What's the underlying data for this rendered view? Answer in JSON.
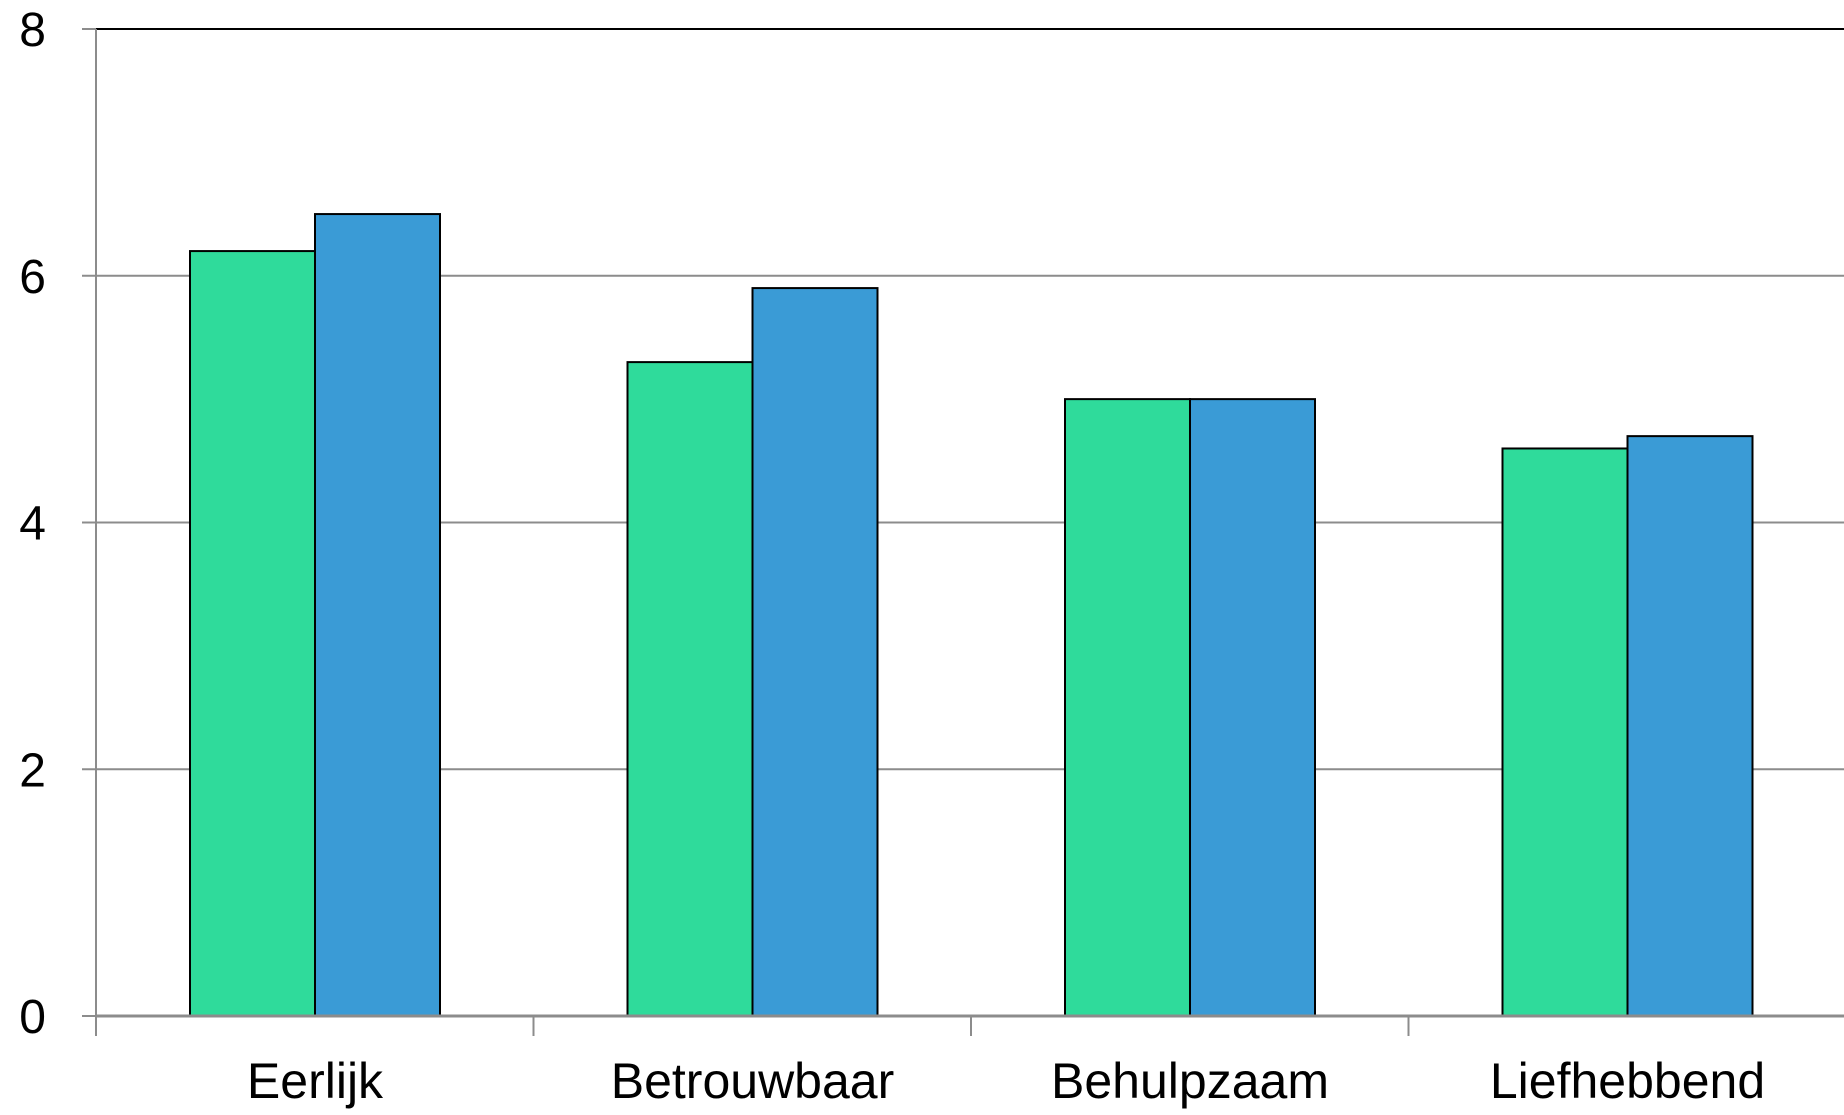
{
  "chart_data": {
    "type": "bar",
    "categories": [
      "Eerlijk",
      "Betrouwbaar",
      "Behulpzaam",
      "Liefhebbend"
    ],
    "series": [
      {
        "color": "#2fdb9b",
        "values": [
          6.2,
          5.3,
          5.0,
          4.6
        ]
      },
      {
        "color": "#3a9bd6",
        "values": [
          6.5,
          5.9,
          5.0,
          4.7
        ]
      }
    ],
    "ylim": [
      0,
      8
    ],
    "yticks": [
      "0",
      "2",
      "4",
      "6",
      "8"
    ],
    "grid": true,
    "legend": "none"
  }
}
